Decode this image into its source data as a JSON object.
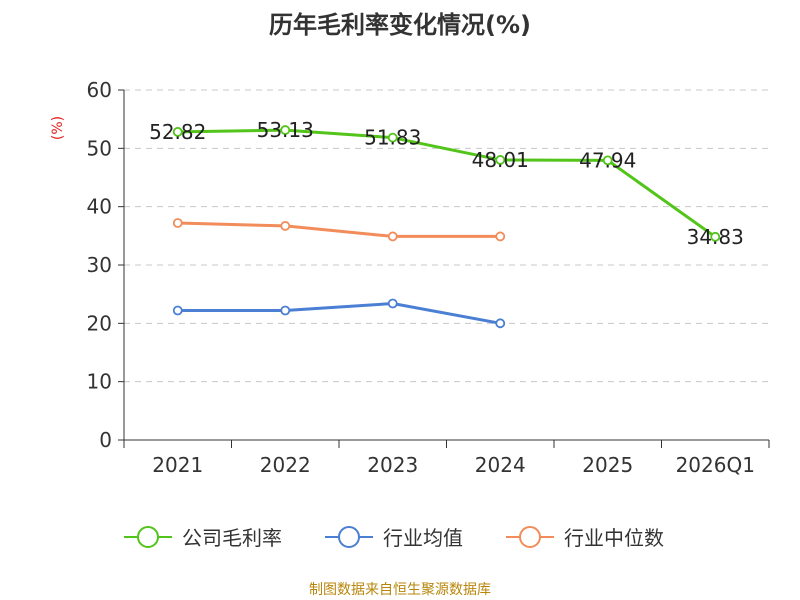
{
  "chart_data": {
    "type": "line",
    "title": "历年毛利率变化情况(%)",
    "ylabel": "(%)",
    "categories": [
      "2021",
      "2022",
      "2023",
      "2024",
      "2025",
      "2026Q1"
    ],
    "ylim": [
      0,
      60
    ],
    "yticks": [
      0,
      10,
      20,
      30,
      40,
      50,
      60
    ],
    "grid": true,
    "legend_position": "bottom",
    "series": [
      {
        "name": "公司毛利率",
        "color": "#52c41a",
        "values": [
          52.82,
          53.13,
          51.83,
          48.01,
          47.94,
          34.83
        ],
        "labels": [
          "52.82",
          "53.13",
          "51.83",
          "48.01",
          "47.94",
          "34.83"
        ]
      },
      {
        "name": "行业均值",
        "color": "#4a7fd4",
        "values": [
          22.2,
          22.2,
          23.4,
          20.0,
          null,
          null
        ]
      },
      {
        "name": "行业中位数",
        "color": "#f28c5a",
        "values": [
          37.2,
          36.7,
          34.9,
          34.9,
          null,
          null
        ]
      }
    ]
  },
  "source_note": "制图数据来自恒生聚源数据库"
}
